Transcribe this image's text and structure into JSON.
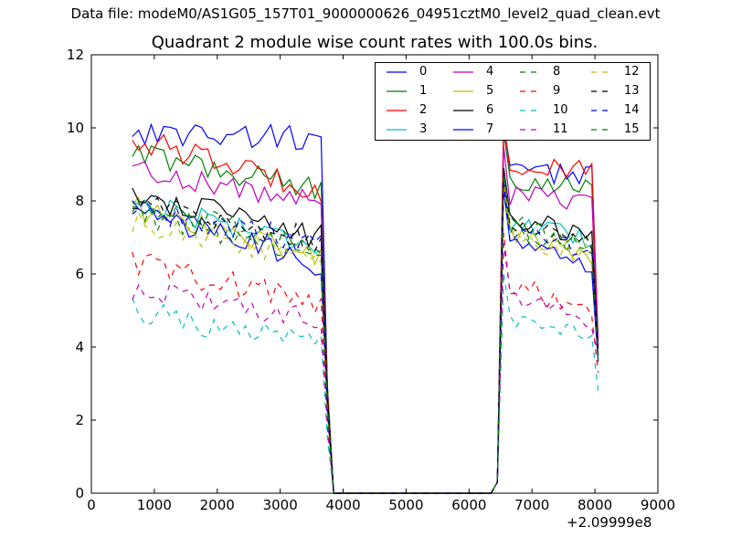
{
  "header": {
    "data_file": "Data file: modeM0/AS1G05_157T01_9000000626_04951cztM0_level2_quad_clean.evt"
  },
  "chart_data": {
    "type": "line",
    "title": "Quadrant 2 module wise count rates with 100.0s bins.",
    "xlabel": "",
    "ylabel": "",
    "x_offset_label": "+2.09999e8",
    "xlim": [
      0,
      9000
    ],
    "ylim": [
      0,
      12
    ],
    "xticks": [
      0,
      1000,
      2000,
      3000,
      4000,
      5000,
      6000,
      7000,
      8000,
      9000
    ],
    "yticks": [
      0,
      2,
      4,
      6,
      8,
      10,
      12
    ],
    "grid": false,
    "legend_position": "top-right",
    "segment_1": {
      "x_start": 650,
      "x_step": 100,
      "count": 31
    },
    "drop": {
      "x": [
        3750,
        3850
      ]
    },
    "gap": {
      "x_start": 3850,
      "x_end": 6350,
      "value": 0
    },
    "rise": {
      "x": [
        6450,
        6550
      ]
    },
    "segment_2": {
      "x_start": 6550,
      "x_step": 100,
      "count": 15
    },
    "end": {
      "x": 8050
    },
    "series": [
      {
        "name": "0",
        "color": "#0000ff",
        "style": "solid",
        "level1": 9.9,
        "level2": 8.8,
        "trend1": 0.2,
        "trend2": 0.1,
        "edge": 4.2
      },
      {
        "name": "1",
        "color": "#008000",
        "style": "solid",
        "level1": 9.3,
        "level2": 8.6,
        "trend1": 1.0,
        "trend2": 0.1,
        "edge": 4.0
      },
      {
        "name": "2",
        "color": "#ff0000",
        "style": "solid",
        "level1": 9.7,
        "level2": 8.9,
        "trend1": 1.4,
        "trend2": 0.1,
        "edge": 4.1
      },
      {
        "name": "3",
        "color": "#00bfbf",
        "style": "solid",
        "level1": 8.0,
        "level2": 7.4,
        "trend1": 1.2,
        "trend2": 0.5,
        "edge": 3.8
      },
      {
        "name": "4",
        "color": "#bf00bf",
        "style": "solid",
        "level1": 8.9,
        "level2": 8.2,
        "trend1": 1.0,
        "trend2": 0.3,
        "edge": 4.0
      },
      {
        "name": "5",
        "color": "#bfbf00",
        "style": "solid",
        "level1": 7.8,
        "level2": 7.2,
        "trend1": 1.3,
        "trend2": 0.8,
        "edge": 3.7
      },
      {
        "name": "6",
        "color": "#000000",
        "style": "solid",
        "level1": 8.2,
        "level2": 7.6,
        "trend1": 1.2,
        "trend2": 0.6,
        "edge": 3.8
      },
      {
        "name": "7",
        "color": "#0000ff",
        "style": "solid",
        "level1": 7.8,
        "level2": 7.0,
        "trend1": 1.6,
        "trend2": 0.8,
        "edge": 3.6
      },
      {
        "name": "8",
        "color": "#008000",
        "style": "dashed",
        "level1": 7.6,
        "level2": 7.3,
        "trend1": 1.0,
        "trend2": 0.6,
        "edge": 3.7
      },
      {
        "name": "9",
        "color": "#ff0000",
        "style": "dashed",
        "level1": 6.3,
        "level2": 5.8,
        "trend1": 1.1,
        "trend2": 0.8,
        "edge": 3.3
      },
      {
        "name": "10",
        "color": "#00bfbf",
        "style": "dashed",
        "level1": 5.0,
        "level2": 4.7,
        "trend1": 1.0,
        "trend2": 0.5,
        "edge": 2.8
      },
      {
        "name": "11",
        "color": "#bf00bf",
        "style": "dashed",
        "level1": 5.6,
        "level2": 5.5,
        "trend1": 0.8,
        "trend2": 0.8,
        "edge": 3.8
      },
      {
        "name": "12",
        "color": "#bfbf00",
        "style": "dashed",
        "level1": 7.4,
        "level2": 7.1,
        "trend1": 1.0,
        "trend2": 0.6,
        "edge": 3.7
      },
      {
        "name": "13",
        "color": "#000000",
        "style": "dashed",
        "level1": 8.0,
        "level2": 7.5,
        "trend1": 1.1,
        "trend2": 0.6,
        "edge": 3.8
      },
      {
        "name": "14",
        "color": "#0000ff",
        "style": "dashed",
        "level1": 7.8,
        "level2": 7.2,
        "trend1": 1.0,
        "trend2": 0.6,
        "edge": 3.7
      },
      {
        "name": "15",
        "color": "#008000",
        "style": "dashed",
        "level1": 7.8,
        "level2": 7.4,
        "trend1": 1.0,
        "trend2": 0.6,
        "edge": 3.7
      }
    ]
  }
}
